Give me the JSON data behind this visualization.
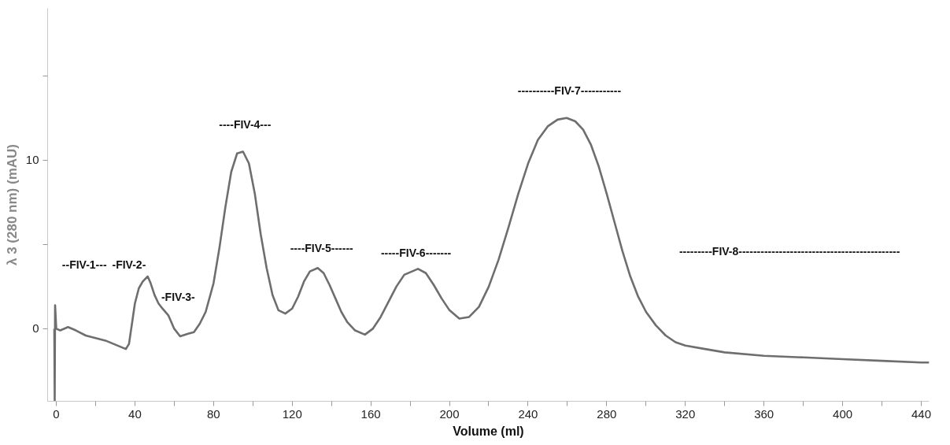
{
  "chart_data": {
    "type": "line",
    "xlabel": "Volume (ml)",
    "ylabel": "λ 3 (280 nm) (mAU)",
    "xlim": [
      -4.4,
      444
    ],
    "ylim": [
      -4.3,
      19
    ],
    "xticks": [
      0,
      {
        "value": 20,
        "label": null
      },
      40,
      {
        "value": 60,
        "label": null
      },
      80,
      {
        "value": 100,
        "label": null
      },
      120,
      {
        "value": 140,
        "label": null
      },
      160,
      {
        "value": 180,
        "label": null
      },
      200,
      {
        "value": 220,
        "label": null
      },
      240,
      {
        "value": 260,
        "label": null
      },
      280,
      {
        "value": 300,
        "label": null
      },
      320,
      {
        "value": 340,
        "label": null
      },
      360,
      {
        "value": 380,
        "label": null
      },
      400,
      {
        "value": 420,
        "label": null
      },
      440
    ],
    "yticks": [
      0,
      {
        "value": 5,
        "label": null
      },
      10,
      {
        "value": 15,
        "label": null
      }
    ],
    "marker": "none",
    "line_style": "solid",
    "series": [
      {
        "color": "#6e6e6e",
        "x": [
          -1,
          -0.8,
          -0.6,
          0,
          2,
          6,
          10,
          15,
          25,
          35.4,
          37,
          38.5,
          40,
          42,
          44,
          46.5,
          48,
          50,
          52,
          54,
          57,
          60,
          63,
          67,
          70,
          73,
          76,
          80,
          83,
          86,
          89,
          92,
          95,
          98,
          101,
          104,
          107,
          110,
          113,
          116.5,
          120,
          123,
          126,
          129,
          133,
          136,
          139,
          142,
          145,
          148,
          152,
          157,
          161,
          165,
          169,
          173,
          177,
          184,
          188,
          192,
          196,
          200,
          205,
          210,
          215,
          220,
          225,
          230,
          235,
          240,
          245,
          250,
          255,
          259.6,
          264,
          268,
          272,
          276,
          280,
          284,
          288,
          292,
          296,
          300,
          305,
          310,
          315,
          320,
          330,
          340,
          360,
          380,
          400,
          420,
          440,
          444
        ],
        "values": [
          0,
          -4.3,
          1.4,
          0,
          -0.1,
          0.1,
          -0.1,
          -0.4,
          -0.7,
          -1.2,
          -0.9,
          0.3,
          1.5,
          2.4,
          2.8,
          3.1,
          2.7,
          2,
          1.5,
          1.2,
          0.8,
          0,
          -0.45,
          -0.3,
          -0.2,
          0.3,
          1,
          2.7,
          4.8,
          7.2,
          9.3,
          10.4,
          10.5,
          9.8,
          8,
          5.6,
          3.6,
          2,
          1.1,
          0.9,
          1.2,
          1.9,
          2.8,
          3.4,
          3.6,
          3.3,
          2.6,
          1.8,
          1,
          0.4,
          -0.1,
          -0.35,
          0,
          0.7,
          1.6,
          2.5,
          3.2,
          3.55,
          3.3,
          2.6,
          1.8,
          1.1,
          0.6,
          0.7,
          1.3,
          2.5,
          4.1,
          6,
          8,
          9.8,
          11.2,
          12,
          12.4,
          12.5,
          12.3,
          11.8,
          10.9,
          9.6,
          8,
          6.3,
          4.6,
          3.1,
          1.9,
          1,
          0.2,
          -0.4,
          -0.8,
          -1,
          -1.2,
          -1.4,
          -1.6,
          -1.7,
          -1.8,
          -1.9,
          -2,
          -2
        ]
      }
    ],
    "annotations": [
      "--FIV-1---",
      "-FIV-2-",
      "-FIV-3-",
      "----FIV-4---",
      "----FIV-5------",
      "-----FIV-6-------",
      "----------FIV-7-----------",
      "---------FIV-8--------------------------------------------"
    ]
  }
}
